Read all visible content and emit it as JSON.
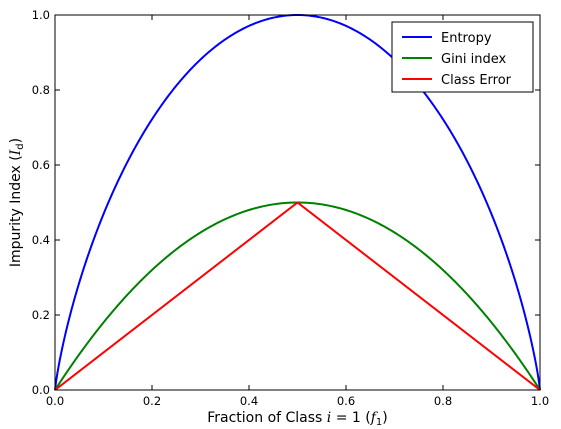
{
  "chart_data": {
    "type": "line",
    "title": "",
    "xlabel": {
      "prefix": "Fraction of Class ",
      "var": "i",
      "eq": " = 1 (",
      "sym": "f",
      "sub": "1",
      "suffix": ")"
    },
    "ylabel": {
      "prefix": "Impurity Index (",
      "sym": "I",
      "sub": "d",
      "suffix": ")"
    },
    "xlim": [
      0.0,
      1.0
    ],
    "ylim": [
      0.0,
      1.0
    ],
    "xticks": [
      "0.0",
      "0.2",
      "0.4",
      "0.6",
      "0.8",
      "1.0"
    ],
    "yticks": [
      "0.0",
      "0.2",
      "0.4",
      "0.6",
      "0.8",
      "1.0"
    ],
    "grid": false,
    "legend_position": "top-right",
    "x": [
      0.0,
      0.02,
      0.05,
      0.1,
      0.15,
      0.2,
      0.25,
      0.3,
      0.35,
      0.4,
      0.45,
      0.5,
      0.55,
      0.6,
      0.65,
      0.7,
      0.75,
      0.8,
      0.85,
      0.9,
      0.95,
      0.98,
      1.0
    ],
    "series": [
      {
        "name": "Entropy",
        "color": "#0000ff",
        "values": [
          0.0,
          0.141,
          0.286,
          0.469,
          0.61,
          0.722,
          0.811,
          0.881,
          0.934,
          0.971,
          0.993,
          1.0,
          0.993,
          0.971,
          0.934,
          0.881,
          0.811,
          0.722,
          0.61,
          0.469,
          0.286,
          0.141,
          0.0
        ]
      },
      {
        "name": "Gini index",
        "color": "#008000",
        "values": [
          0.0,
          0.039,
          0.095,
          0.18,
          0.255,
          0.32,
          0.375,
          0.42,
          0.455,
          0.48,
          0.495,
          0.5,
          0.495,
          0.48,
          0.455,
          0.42,
          0.375,
          0.32,
          0.255,
          0.18,
          0.095,
          0.039,
          0.0
        ]
      },
      {
        "name": "Class Error",
        "color": "#ff0000",
        "values": [
          0.0,
          0.02,
          0.05,
          0.1,
          0.15,
          0.2,
          0.25,
          0.3,
          0.35,
          0.4,
          0.45,
          0.5,
          0.45,
          0.4,
          0.35,
          0.3,
          0.25,
          0.2,
          0.15,
          0.1,
          0.05,
          0.02,
          0.0
        ]
      }
    ]
  }
}
